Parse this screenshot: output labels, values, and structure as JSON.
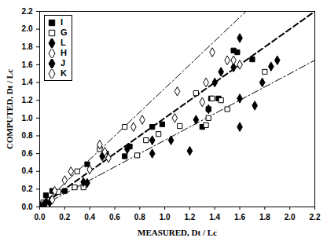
{
  "chart_data": {
    "type": "scatter",
    "x_label": "MEASURED, Dt / Lc",
    "y_label": "COMPUTED, Dt / Lc",
    "xlim": [
      0,
      2.2
    ],
    "ylim": [
      0,
      2.2
    ],
    "xticks": [
      {
        "value": 0,
        "label": "0.0"
      },
      0.2,
      0.4,
      0.6,
      0.8,
      {
        "value": 1,
        "label": "1.0"
      },
      1.2,
      1.4,
      1.6,
      1.8,
      {
        "value": 2,
        "label": "2.0"
      },
      2.2
    ],
    "yticks": [
      {
        "value": 0,
        "label": "0.0"
      },
      0.2,
      0.4,
      0.6,
      0.8,
      {
        "value": 1,
        "label": "1.0"
      },
      1.2,
      1.4,
      1.6,
      1.8,
      {
        "value": 2,
        "label": "2.0"
      },
      2.2
    ],
    "legend": "top-left",
    "series": [
      {
        "type": "line",
        "line_style": "dashed",
        "color": "#000000",
        "x": [
          0,
          2.2
        ],
        "values": [
          0,
          2.2
        ]
      },
      {
        "type": "line",
        "line_style": "dashdot",
        "color": "#000000",
        "x": [
          0,
          1.65
        ],
        "values": [
          0,
          2.2
        ]
      },
      {
        "type": "line",
        "line_style": "dashdot",
        "color": "#000000",
        "x": [
          0,
          2.2
        ],
        "values": [
          0,
          1.65
        ]
      },
      {
        "name": "I",
        "type": "scatter",
        "marker": "square",
        "color": "#000000",
        "x": [
          0.02,
          0.05,
          0.1,
          0.2,
          0.38,
          0.53,
          0.68,
          0.72,
          0.9,
          0.98,
          1.3,
          1.35,
          1.37,
          1.43,
          1.55,
          1.58,
          1.7
        ],
        "values": [
          0.03,
          0.13,
          0.18,
          0.18,
          0.48,
          0.6,
          0.57,
          0.68,
          0.9,
          0.93,
          0.9,
          1.1,
          1.22,
          1.22,
          1.76,
          1.74,
          1.66
        ]
      },
      {
        "name": "G",
        "type": "scatter",
        "marker": "open-square",
        "color": "#000000",
        "x": [
          0.03,
          0.08,
          0.15,
          0.28,
          0.3,
          0.35,
          0.48,
          0.52,
          0.68,
          0.78,
          0.85,
          0.95,
          1.12,
          1.25,
          1.33,
          1.35,
          1.38,
          1.45,
          1.5,
          1.8
        ],
        "values": [
          0.05,
          0.08,
          0.17,
          0.22,
          0.4,
          0.22,
          0.65,
          0.58,
          0.9,
          0.58,
          0.75,
          0.82,
          0.91,
          1.28,
          0.92,
          1.0,
          1.22,
          1.2,
          1.1,
          1.52
        ]
      },
      {
        "name": "L",
        "type": "scatter",
        "marker": "diamond",
        "color": "#000000",
        "x": [
          0.05,
          0.38,
          0.5,
          0.9,
          1.05,
          1.2,
          1.4,
          1.55,
          1.6,
          1.6,
          1.72,
          1.78,
          1.85
        ],
        "values": [
          0.05,
          0.27,
          0.57,
          0.6,
          0.75,
          0.63,
          1.4,
          1.57,
          1.9,
          0.9,
          1.14,
          1.4,
          1.58
        ]
      },
      {
        "name": "H",
        "type": "scatter",
        "marker": "open-diamond",
        "color": "#000000",
        "x": [
          0.12,
          0.4,
          0.48,
          0.55,
          0.82,
          1.08,
          1.3,
          1.38,
          1.5,
          1.6
        ],
        "values": [
          0.18,
          0.42,
          0.7,
          0.55,
          0.98,
          1.0,
          1.18,
          1.74,
          1.65,
          1.6
        ]
      },
      {
        "name": "J",
        "type": "scatter",
        "marker": "diamond",
        "color": "#000000",
        "x": [
          0.03,
          0.08,
          0.35,
          0.7,
          0.9,
          1.25,
          1.35,
          1.45,
          1.6,
          1.9
        ],
        "values": [
          0.02,
          0.05,
          0.28,
          0.65,
          0.75,
          0.98,
          1.1,
          1.52,
          1.22,
          1.65
        ]
      },
      {
        "name": "K",
        "type": "scatter",
        "marker": "open-diamond",
        "color": "#000000",
        "x": [
          0.1,
          0.2,
          0.25,
          0.52,
          0.75,
          1.1,
          1.33,
          1.55
        ],
        "values": [
          0.08,
          0.3,
          0.4,
          0.62,
          0.9,
          1.3,
          1.4,
          1.65
        ]
      }
    ]
  }
}
